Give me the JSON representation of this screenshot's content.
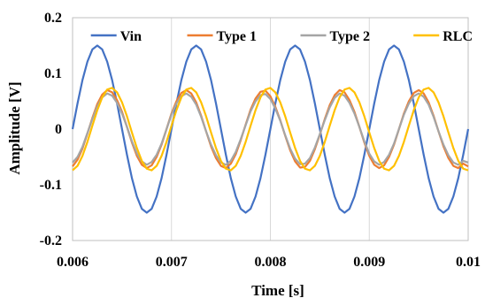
{
  "chart_data": {
    "type": "line",
    "title": "",
    "xlabel": "Time [s]",
    "ylabel": "Amplitude [V]",
    "xlim": [
      0.006,
      0.01
    ],
    "ylim": [
      -0.2,
      0.2
    ],
    "xticks": [
      0.006,
      0.007,
      0.008,
      0.009,
      0.01
    ],
    "xtick_labels": [
      "0.006",
      "0.007",
      "0.008",
      "0.009",
      "0.01"
    ],
    "yticks": [
      -0.2,
      -0.1,
      0,
      0.1,
      0.2
    ],
    "ytick_labels": [
      "-0.2",
      "-0.1",
      "0",
      "0.1",
      "0.2"
    ],
    "grid": "vertical",
    "legend_position": "top",
    "series": [
      {
        "name": "Vin",
        "color": "#4472C4",
        "x": [
          0.006,
          0.00605,
          0.0061,
          0.00615,
          0.0062,
          0.00625,
          0.0063,
          0.00635,
          0.0064,
          0.00645,
          0.0065,
          0.00655,
          0.0066,
          0.00665,
          0.0067,
          0.00675,
          0.0068,
          0.00685,
          0.0069,
          0.00695,
          0.007,
          0.00705,
          0.0071,
          0.00715,
          0.0072,
          0.00725,
          0.0073,
          0.00735,
          0.0074,
          0.00745,
          0.0075,
          0.00755,
          0.0076,
          0.00765,
          0.0077,
          0.00775,
          0.0078,
          0.00785,
          0.0079,
          0.00795,
          0.008,
          0.00805,
          0.0081,
          0.00815,
          0.0082,
          0.00825,
          0.0083,
          0.00835,
          0.0084,
          0.00845,
          0.0085,
          0.00855,
          0.0086,
          0.00865,
          0.0087,
          0.00875,
          0.0088,
          0.00885,
          0.0089,
          0.00895,
          0.009,
          0.00905,
          0.0091,
          0.00915,
          0.0092,
          0.00925,
          0.0093,
          0.00935,
          0.0094,
          0.00945,
          0.0095,
          0.00955,
          0.0096,
          0.00965,
          0.0097,
          0.00975,
          0.0098,
          0.00985,
          0.0099,
          0.00995,
          0.01
        ],
        "y": [
          0,
          0.046,
          0.088,
          0.121,
          0.143,
          0.15,
          0.143,
          0.121,
          0.088,
          0.046,
          0,
          -0.046,
          -0.088,
          -0.121,
          -0.143,
          -0.15,
          -0.143,
          -0.121,
          -0.088,
          -0.046,
          0,
          0.046,
          0.088,
          0.121,
          0.143,
          0.15,
          0.143,
          0.121,
          0.088,
          0.046,
          0,
          -0.046,
          -0.088,
          -0.121,
          -0.143,
          -0.15,
          -0.143,
          -0.121,
          -0.088,
          -0.046,
          0,
          0.046,
          0.088,
          0.121,
          0.143,
          0.15,
          0.143,
          0.121,
          0.088,
          0.046,
          0,
          -0.046,
          -0.088,
          -0.121,
          -0.143,
          -0.15,
          -0.143,
          -0.121,
          -0.088,
          -0.046,
          0,
          0.046,
          0.088,
          0.121,
          0.143,
          0.15,
          0.143,
          0.121,
          0.088,
          0.046,
          0,
          -0.046,
          -0.088,
          -0.121,
          -0.143,
          -0.15,
          -0.143,
          -0.121,
          -0.088,
          -0.046,
          0
        ]
      },
      {
        "name": "Type 1",
        "color": "#ED7D31",
        "x": [
          0.006,
          0.00605,
          0.0061,
          0.00615,
          0.0062,
          0.00625,
          0.0063,
          0.00635,
          0.0064,
          0.00645,
          0.0065,
          0.00655,
          0.0066,
          0.00665,
          0.0067,
          0.00675,
          0.0068,
          0.00685,
          0.0069,
          0.00695,
          0.007,
          0.00705,
          0.0071,
          0.00715,
          0.0072,
          0.00725,
          0.0073,
          0.00735,
          0.0074,
          0.00745,
          0.0075,
          0.00755,
          0.0076,
          0.00765,
          0.0077,
          0.00775,
          0.0078,
          0.00785,
          0.0079,
          0.00795,
          0.008,
          0.00805,
          0.0081,
          0.00815,
          0.0082,
          0.00825,
          0.0083,
          0.00835,
          0.0084,
          0.00845,
          0.0085,
          0.00855,
          0.0086,
          0.00865,
          0.0087,
          0.00875,
          0.0088,
          0.00885,
          0.0089,
          0.00895,
          0.009,
          0.00905,
          0.0091,
          0.00915,
          0.0092,
          0.00925,
          0.0093,
          0.00935,
          0.0094,
          0.00945,
          0.0095,
          0.00955,
          0.0096,
          0.00965,
          0.0097,
          0.00975,
          0.0098,
          0.00985,
          0.0099,
          0.00995,
          0.01
        ],
        "y": [
          -0.067,
          -0.055,
          -0.035,
          -0.008,
          0.02,
          0.045,
          0.062,
          0.07,
          0.066,
          0.052,
          0.031,
          0.004,
          -0.024,
          -0.048,
          -0.064,
          -0.07,
          -0.065,
          -0.05,
          -0.028,
          0,
          0.028,
          0.05,
          0.065,
          0.07,
          0.064,
          0.048,
          0.024,
          -0.004,
          -0.031,
          -0.052,
          -0.066,
          -0.07,
          -0.062,
          -0.045,
          -0.02,
          0.008,
          0.035,
          0.055,
          0.067,
          0.069,
          0.059,
          0.04,
          0.016,
          -0.012,
          -0.038,
          -0.058,
          -0.069,
          -0.068,
          -0.057,
          -0.036,
          -0.01,
          0.018,
          0.043,
          0.061,
          0.07,
          0.066,
          0.052,
          0.031,
          0.004,
          -0.024,
          -0.048,
          -0.064,
          -0.07,
          -0.065,
          -0.05,
          -0.028,
          0,
          0.028,
          0.05,
          0.065,
          0.07,
          0.064,
          0.048,
          0.024,
          -0.004,
          -0.031,
          -0.052,
          -0.066,
          -0.07,
          -0.062,
          -0.067
        ]
      },
      {
        "name": "Type 2",
        "color": "#A5A5A5",
        "x": [
          0.006,
          0.00605,
          0.0061,
          0.00615,
          0.0062,
          0.00625,
          0.0063,
          0.00635,
          0.0064,
          0.00645,
          0.0065,
          0.00655,
          0.0066,
          0.00665,
          0.0067,
          0.00675,
          0.0068,
          0.00685,
          0.0069,
          0.00695,
          0.007,
          0.00705,
          0.0071,
          0.00715,
          0.0072,
          0.00725,
          0.0073,
          0.00735,
          0.0074,
          0.00745,
          0.0075,
          0.00755,
          0.0076,
          0.00765,
          0.0077,
          0.00775,
          0.0078,
          0.00785,
          0.0079,
          0.00795,
          0.008,
          0.00805,
          0.0081,
          0.00815,
          0.0082,
          0.00825,
          0.0083,
          0.00835,
          0.0084,
          0.00845,
          0.0085,
          0.00855,
          0.0086,
          0.00865,
          0.0087,
          0.00875,
          0.0088,
          0.00885,
          0.0089,
          0.00895,
          0.009,
          0.00905,
          0.0091,
          0.00915,
          0.0092,
          0.00925,
          0.0093,
          0.00935,
          0.0094,
          0.00945,
          0.0095,
          0.00955,
          0.0096,
          0.00965,
          0.0097,
          0.00975,
          0.0098,
          0.00985,
          0.0099,
          0.00995,
          0.01
        ],
        "y": [
          -0.06,
          -0.05,
          -0.032,
          -0.007,
          0.018,
          0.041,
          0.057,
          0.064,
          0.06,
          0.047,
          0.028,
          0.004,
          -0.022,
          -0.044,
          -0.058,
          -0.064,
          -0.059,
          -0.046,
          -0.026,
          0,
          0.026,
          0.046,
          0.059,
          0.064,
          0.058,
          0.044,
          0.022,
          -0.004,
          -0.028,
          -0.047,
          -0.06,
          -0.064,
          -0.057,
          -0.041,
          -0.018,
          0.007,
          0.032,
          0.05,
          0.061,
          0.063,
          0.054,
          0.037,
          0.015,
          -0.011,
          -0.035,
          -0.053,
          -0.063,
          -0.062,
          -0.052,
          -0.033,
          -0.009,
          0.016,
          0.039,
          0.056,
          0.064,
          0.06,
          0.047,
          0.028,
          0.004,
          -0.022,
          -0.044,
          -0.058,
          -0.064,
          -0.059,
          -0.046,
          -0.026,
          0,
          0.026,
          0.046,
          0.059,
          0.064,
          0.058,
          0.044,
          0.022,
          -0.004,
          -0.028,
          -0.047,
          -0.06,
          -0.064,
          -0.057,
          -0.06
        ]
      },
      {
        "name": "RLC",
        "color": "#FFC000",
        "x": [
          0.006,
          0.00605,
          0.0061,
          0.00615,
          0.0062,
          0.00625,
          0.0063,
          0.00635,
          0.0064,
          0.00645,
          0.0065,
          0.00655,
          0.0066,
          0.00665,
          0.0067,
          0.00675,
          0.0068,
          0.00685,
          0.0069,
          0.00695,
          0.007,
          0.00705,
          0.0071,
          0.00715,
          0.0072,
          0.00725,
          0.0073,
          0.00735,
          0.0074,
          0.00745,
          0.0075,
          0.00755,
          0.0076,
          0.00765,
          0.0077,
          0.00775,
          0.0078,
          0.00785,
          0.0079,
          0.00795,
          0.008,
          0.00805,
          0.0081,
          0.00815,
          0.0082,
          0.00825,
          0.0083,
          0.00835,
          0.0084,
          0.00845,
          0.0085,
          0.00855,
          0.0086,
          0.00865,
          0.0087,
          0.00875,
          0.0088,
          0.00885,
          0.0089,
          0.00895,
          0.009,
          0.00905,
          0.0091,
          0.00915,
          0.0092,
          0.00925,
          0.0093,
          0.00935,
          0.0094,
          0.00945,
          0.0095,
          0.00955,
          0.0096,
          0.00965,
          0.0097,
          0.00975,
          0.0098,
          0.00985,
          0.0099,
          0.00995,
          0.01
        ],
        "y": [
          -0.074,
          -0.066,
          -0.048,
          -0.023,
          0.006,
          0.034,
          0.057,
          0.071,
          0.074,
          0.066,
          0.048,
          0.023,
          -0.006,
          -0.034,
          -0.057,
          -0.071,
          -0.074,
          -0.066,
          -0.048,
          -0.023,
          0.006,
          0.034,
          0.057,
          0.071,
          0.074,
          0.066,
          0.048,
          0.023,
          -0.006,
          -0.034,
          -0.057,
          -0.071,
          -0.074,
          -0.066,
          -0.048,
          -0.023,
          0.006,
          0.034,
          0.057,
          0.071,
          0.074,
          0.066,
          0.048,
          0.023,
          -0.006,
          -0.034,
          -0.057,
          -0.071,
          -0.074,
          -0.066,
          -0.048,
          -0.023,
          0.006,
          0.034,
          0.057,
          0.071,
          0.074,
          0.066,
          0.048,
          0.023,
          -0.006,
          -0.034,
          -0.057,
          -0.071,
          -0.074,
          -0.066,
          -0.048,
          -0.023,
          0.006,
          0.034,
          0.057,
          0.071,
          0.074,
          0.066,
          0.048,
          0.023,
          -0.006,
          -0.034,
          -0.057,
          -0.071,
          -0.074
        ]
      }
    ]
  }
}
